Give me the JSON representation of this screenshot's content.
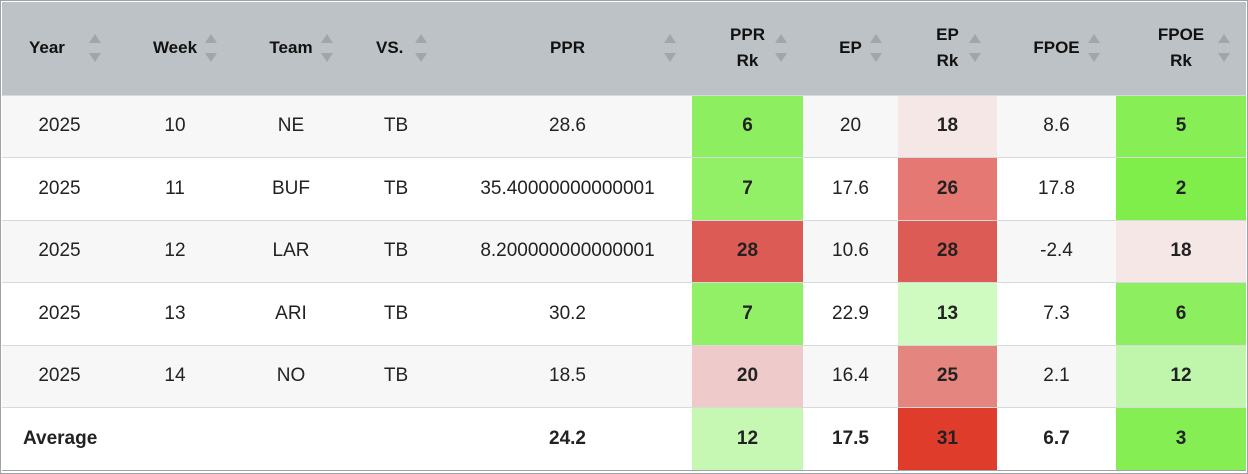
{
  "columns": [
    {
      "label_lines": [
        "Year"
      ],
      "align": "left"
    },
    {
      "label_lines": [
        "Week"
      ],
      "align": "center"
    },
    {
      "label_lines": [
        "Team"
      ],
      "align": "center"
    },
    {
      "label_lines": [
        "VS."
      ],
      "align": "left"
    },
    {
      "label_lines": [
        "PPR"
      ],
      "align": "center"
    },
    {
      "label_lines": [
        "PPR",
        "Rk"
      ],
      "align": "center"
    },
    {
      "label_lines": [
        "EP"
      ],
      "align": "center"
    },
    {
      "label_lines": [
        "EP",
        "Rk"
      ],
      "align": "center"
    },
    {
      "label_lines": [
        "FPOE"
      ],
      "align": "center"
    },
    {
      "label_lines": [
        "FPOE",
        "Rk"
      ],
      "align": "center"
    }
  ],
  "rows": [
    {
      "year": "2025",
      "week": "10",
      "team": "NE",
      "vs": "TB",
      "ppr": "28.6",
      "ppr_rk": "6",
      "ep": "20",
      "ep_rk": "18",
      "fpoe": "8.6",
      "fpoe_rk": "5",
      "colors": {
        "ppr_rk": "#8def60",
        "ep_rk": "#f6e7e7",
        "fpoe_rk": "#87ee55"
      }
    },
    {
      "year": "2025",
      "week": "11",
      "team": "BUF",
      "vs": "TB",
      "ppr": "35.40000000000001",
      "ppr_rk": "7",
      "ep": "17.6",
      "ep_rk": "26",
      "fpoe": "17.8",
      "fpoe_rk": "2",
      "colors": {
        "ppr_rk": "#92f066",
        "ep_rk": "#e57873",
        "fpoe_rk": "#80ee4a"
      }
    },
    {
      "year": "2025",
      "week": "12",
      "team": "LAR",
      "vs": "TB",
      "ppr": "8.200000000000001",
      "ppr_rk": "28",
      "ep": "10.6",
      "ep_rk": "28",
      "fpoe": "-2.4",
      "fpoe_rk": "18",
      "colors": {
        "ppr_rk": "#dc5b54",
        "ep_rk": "#dc5b54",
        "fpoe_rk": "#f6e7e7"
      }
    },
    {
      "year": "2025",
      "week": "13",
      "team": "ARI",
      "vs": "TB",
      "ppr": "30.2",
      "ppr_rk": "7",
      "ep": "22.9",
      "ep_rk": "13",
      "fpoe": "7.3",
      "fpoe_rk": "6",
      "colors": {
        "ppr_rk": "#92f066",
        "ep_rk": "#cffac0",
        "fpoe_rk": "#8def60"
      }
    },
    {
      "year": "2025",
      "week": "14",
      "team": "NO",
      "vs": "TB",
      "ppr": "18.5",
      "ppr_rk": "20",
      "ep": "16.4",
      "ep_rk": "25",
      "fpoe": "2.1",
      "fpoe_rk": "12",
      "colors": {
        "ppr_rk": "#efcaca",
        "ep_rk": "#e4857f",
        "fpoe_rk": "#bff6ab"
      }
    }
  ],
  "average": {
    "label": "Average",
    "ppr": "24.2",
    "ppr_rk": "12",
    "ep": "17.5",
    "ep_rk": "31",
    "fpoe": "6.7",
    "fpoe_rk": "3",
    "colors": {
      "ppr_rk": "#c6f8b4",
      "ep_rk": "#e03c2c",
      "fpoe_rk": "#85ee52"
    }
  }
}
